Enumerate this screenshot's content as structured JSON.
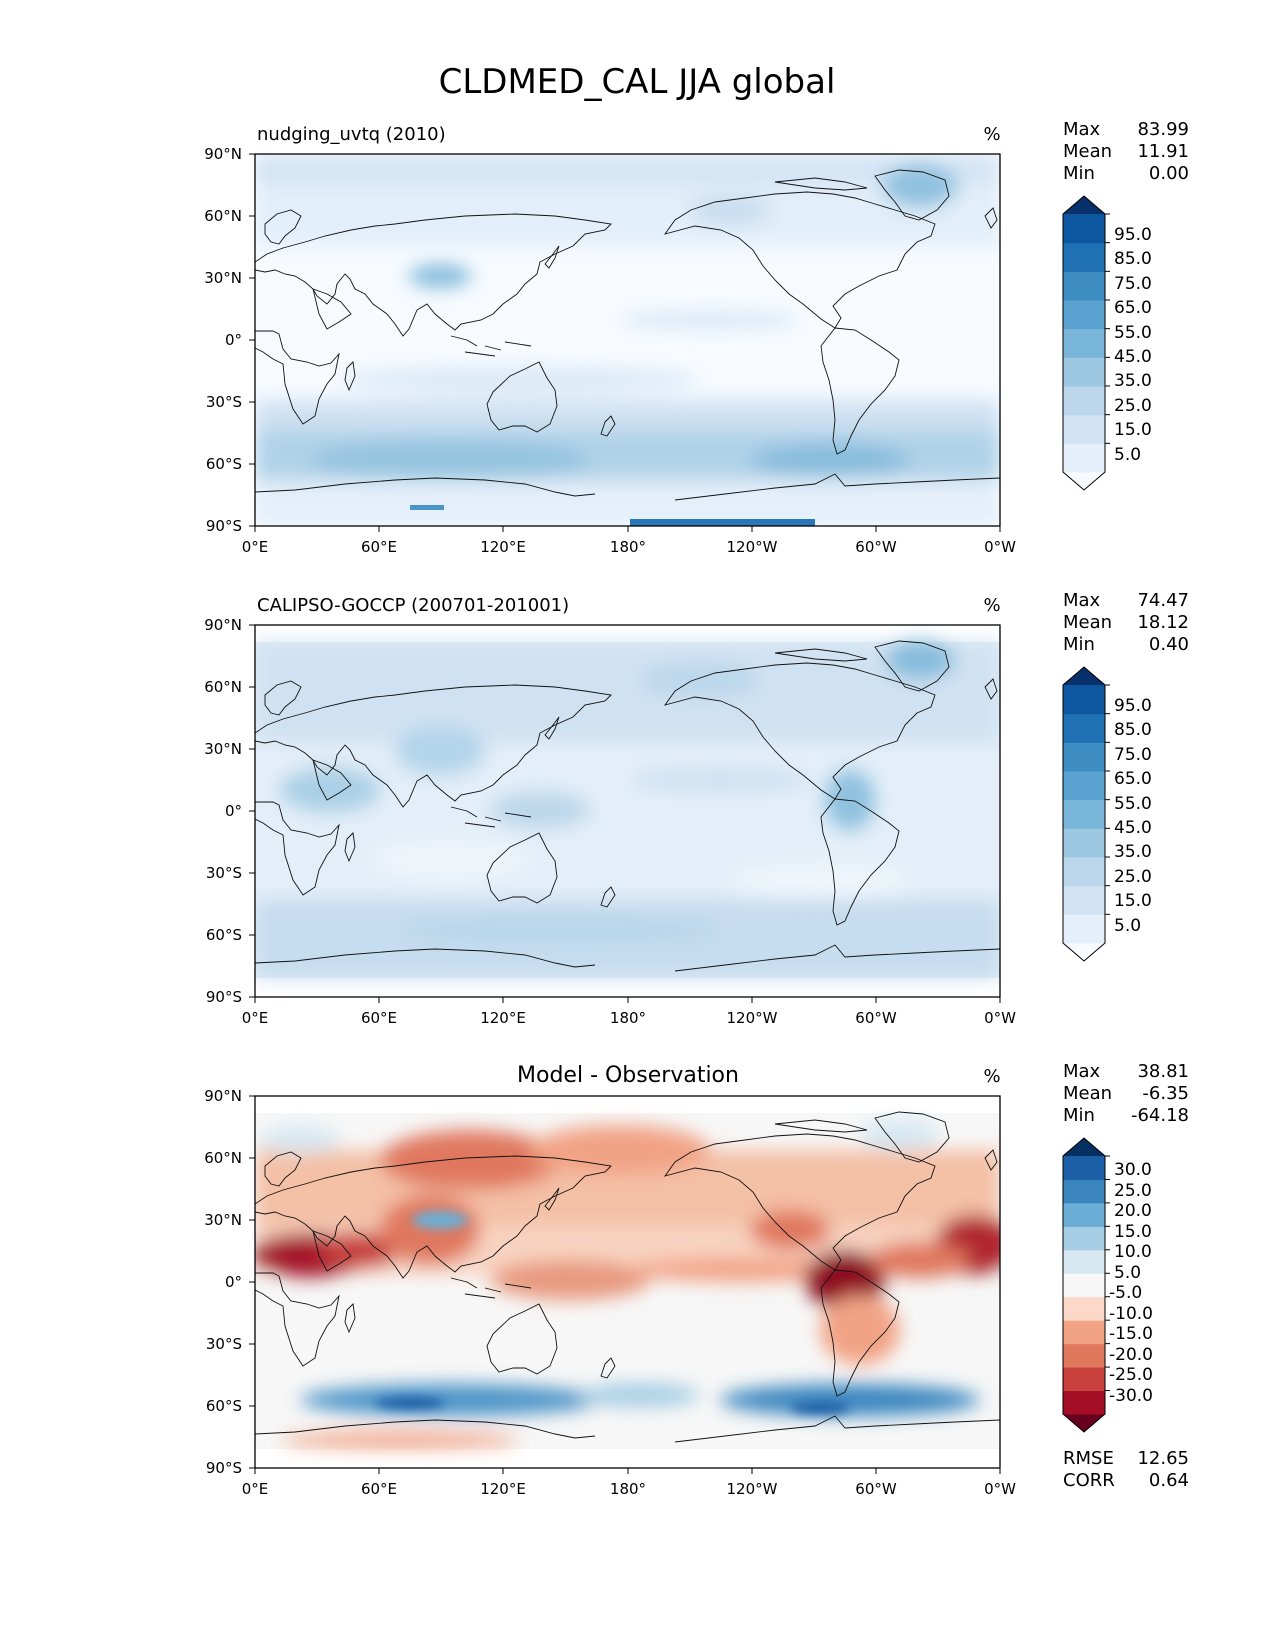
{
  "figure_title": "CLDMED_CAL JJA global",
  "chart_data": [
    {
      "type": "heatmap",
      "title": "nudging_uvtq (2010)",
      "units": "%",
      "stats": [
        {
          "label": "Max",
          "value": "83.99"
        },
        {
          "label": "Mean",
          "value": "11.91"
        },
        {
          "label": "Min",
          "value": "0.00"
        }
      ],
      "x_ticks": [
        "0°E",
        "60°E",
        "120°E",
        "180°",
        "120°W",
        "60°W",
        "0°W"
      ],
      "y_ticks": [
        "90°N",
        "60°N",
        "30°N",
        "0°",
        "30°S",
        "60°S",
        "90°S"
      ],
      "xlim": [
        0,
        360
      ],
      "ylim": [
        -90,
        90
      ],
      "colorbar": {
        "labels": [
          "95.0",
          "85.0",
          "75.0",
          "65.0",
          "55.0",
          "45.0",
          "35.0",
          "25.0",
          "15.0",
          "5.0"
        ],
        "colors": [
          "#f7fbff",
          "#e4eff9",
          "#d2e3f3",
          "#bcd7eb",
          "#9cc9e1",
          "#7ab6d9",
          "#5aa2cf",
          "#3d8dc3",
          "#2070b4",
          "#0d57a1",
          "#08306b"
        ]
      }
    },
    {
      "type": "heatmap",
      "title": "CALIPSO-GOCCP (200701-201001)",
      "units": "%",
      "stats": [
        {
          "label": "Max",
          "value": "74.47"
        },
        {
          "label": "Mean",
          "value": "18.12"
        },
        {
          "label": "Min",
          "value": "0.40"
        }
      ],
      "x_ticks": [
        "0°E",
        "60°E",
        "120°E",
        "180°",
        "120°W",
        "60°W",
        "0°W"
      ],
      "y_ticks": [
        "90°N",
        "60°N",
        "30°N",
        "0°",
        "30°S",
        "60°S",
        "90°S"
      ],
      "xlim": [
        0,
        360
      ],
      "ylim": [
        -90,
        90
      ],
      "colorbar": {
        "labels": [
          "95.0",
          "85.0",
          "75.0",
          "65.0",
          "55.0",
          "45.0",
          "35.0",
          "25.0",
          "15.0",
          "5.0"
        ],
        "colors": [
          "#f7fbff",
          "#e4eff9",
          "#d2e3f3",
          "#bcd7eb",
          "#9cc9e1",
          "#7ab6d9",
          "#5aa2cf",
          "#3d8dc3",
          "#2070b4",
          "#0d57a1",
          "#08306b"
        ]
      }
    },
    {
      "type": "heatmap",
      "title": "Model - Observation",
      "units": "%",
      "stats": [
        {
          "label": "Max",
          "value": "38.81"
        },
        {
          "label": "Mean",
          "value": "-6.35"
        },
        {
          "label": "Min",
          "value": "-64.18"
        }
      ],
      "extra_stats": [
        {
          "label": "RMSE",
          "value": "12.65"
        },
        {
          "label": "CORR",
          "value": "0.64"
        }
      ],
      "x_ticks": [
        "0°E",
        "60°E",
        "120°E",
        "180°",
        "120°W",
        "60°W",
        "0°W"
      ],
      "y_ticks": [
        "90°N",
        "60°N",
        "30°N",
        "0°",
        "30°S",
        "60°S",
        "90°S"
      ],
      "xlim": [
        0,
        360
      ],
      "ylim": [
        -90,
        90
      ],
      "colorbar": {
        "labels": [
          "30.0",
          "25.0",
          "20.0",
          "15.0",
          "10.0",
          "5.0",
          "-5.0",
          "-10.0",
          "-15.0",
          "-20.0",
          "-25.0",
          "-30.0"
        ],
        "colors": [
          "#67001f",
          "#a50f26",
          "#c8413d",
          "#e0785e",
          "#f2a385",
          "#fbd8c7",
          "#f7f7f7",
          "#d7e8f2",
          "#a6cee4",
          "#6aaed6",
          "#3b86bf",
          "#1c5fa6",
          "#053061"
        ]
      }
    }
  ]
}
